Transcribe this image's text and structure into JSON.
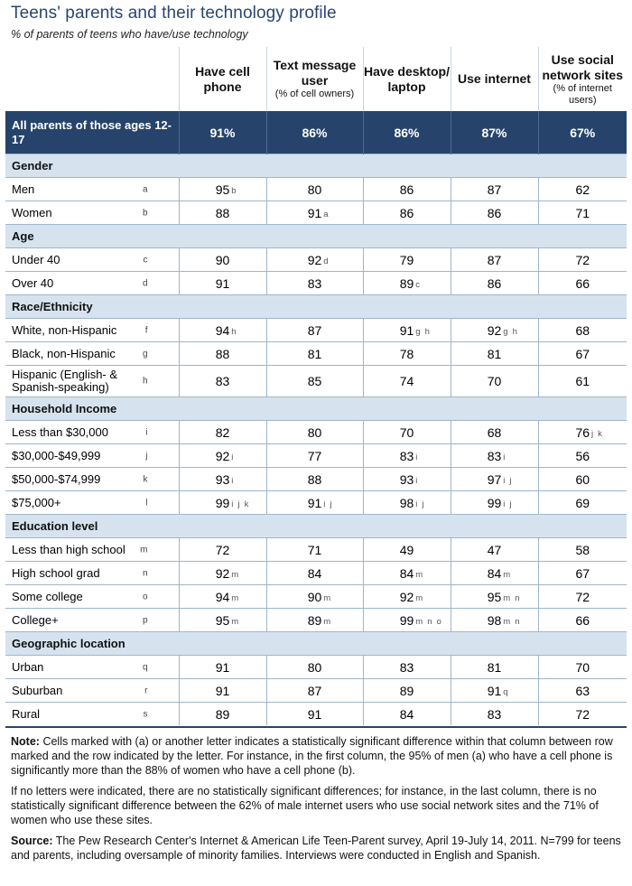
{
  "title": "Teens' parents and their technology profile",
  "subtitle": "% of parents of teens who have/use technology",
  "columns": [
    {
      "label": "Have cell phone",
      "sub": ""
    },
    {
      "label": "Text message user",
      "sub": "(% of cell owners)"
    },
    {
      "label": "Have desktop/ laptop",
      "sub": ""
    },
    {
      "label": "Use internet",
      "sub": ""
    },
    {
      "label": "Use social network sites",
      "sub": "(% of internet users)"
    }
  ],
  "all_parents": {
    "label": "All parents of those ages 12-17",
    "values": [
      "91%",
      "86%",
      "86%",
      "87%",
      "67%"
    ]
  },
  "sections": [
    {
      "title": "Gender",
      "rows": [
        {
          "label": "Men",
          "letter": "a",
          "cells": [
            {
              "v": "95",
              "s": "b"
            },
            {
              "v": "80",
              "s": ""
            },
            {
              "v": "86",
              "s": ""
            },
            {
              "v": "87",
              "s": ""
            },
            {
              "v": "62",
              "s": ""
            }
          ]
        },
        {
          "label": "Women",
          "letter": "b",
          "cells": [
            {
              "v": "88",
              "s": ""
            },
            {
              "v": "91",
              "s": "a"
            },
            {
              "v": "86",
              "s": ""
            },
            {
              "v": "86",
              "s": ""
            },
            {
              "v": "71",
              "s": ""
            }
          ]
        }
      ]
    },
    {
      "title": "Age",
      "rows": [
        {
          "label": "Under 40",
          "letter": "c",
          "cells": [
            {
              "v": "90",
              "s": ""
            },
            {
              "v": "92",
              "s": "d"
            },
            {
              "v": "79",
              "s": ""
            },
            {
              "v": "87",
              "s": ""
            },
            {
              "v": "72",
              "s": ""
            }
          ]
        },
        {
          "label": "Over 40",
          "letter": "d",
          "cells": [
            {
              "v": "91",
              "s": ""
            },
            {
              "v": "83",
              "s": ""
            },
            {
              "v": "89",
              "s": "c"
            },
            {
              "v": "86",
              "s": ""
            },
            {
              "v": "66",
              "s": ""
            }
          ]
        }
      ]
    },
    {
      "title": "Race/Ethnicity",
      "rows": [
        {
          "label": "White, non-Hispanic",
          "letter": "f",
          "cells": [
            {
              "v": "94",
              "s": "h"
            },
            {
              "v": "87",
              "s": ""
            },
            {
              "v": "91",
              "s": "g h"
            },
            {
              "v": "92",
              "s": "g h"
            },
            {
              "v": "68",
              "s": ""
            }
          ]
        },
        {
          "label": "Black, non-Hispanic",
          "letter": "g",
          "cells": [
            {
              "v": "88",
              "s": ""
            },
            {
              "v": "81",
              "s": ""
            },
            {
              "v": "78",
              "s": ""
            },
            {
              "v": "81",
              "s": ""
            },
            {
              "v": "67",
              "s": ""
            }
          ]
        },
        {
          "label": "Hispanic (English- & Spanish-speaking)",
          "letter": "h",
          "tall": true,
          "cells": [
            {
              "v": "83",
              "s": ""
            },
            {
              "v": "85",
              "s": ""
            },
            {
              "v": "74",
              "s": ""
            },
            {
              "v": "70",
              "s": ""
            },
            {
              "v": "61",
              "s": ""
            }
          ]
        }
      ]
    },
    {
      "title": "Household Income",
      "rows": [
        {
          "label": "Less than $30,000",
          "letter": "i",
          "cells": [
            {
              "v": "82",
              "s": ""
            },
            {
              "v": "80",
              "s": ""
            },
            {
              "v": "70",
              "s": ""
            },
            {
              "v": "68",
              "s": ""
            },
            {
              "v": "76",
              "s": "j k"
            }
          ]
        },
        {
          "label": "$30,000-$49,999",
          "letter": "j",
          "cells": [
            {
              "v": "92",
              "s": "i"
            },
            {
              "v": "77",
              "s": ""
            },
            {
              "v": "83",
              "s": "i"
            },
            {
              "v": "83",
              "s": "i"
            },
            {
              "v": "56",
              "s": ""
            }
          ]
        },
        {
          "label": "$50,000-$74,999",
          "letter": "k",
          "cells": [
            {
              "v": "93",
              "s": "i"
            },
            {
              "v": "88",
              "s": ""
            },
            {
              "v": "93",
              "s": "i"
            },
            {
              "v": "97",
              "s": "i j"
            },
            {
              "v": "60",
              "s": ""
            }
          ]
        },
        {
          "label": "$75,000+",
          "letter": "l",
          "cells": [
            {
              "v": "99",
              "s": "i j k"
            },
            {
              "v": "91",
              "s": "i j"
            },
            {
              "v": "98",
              "s": "i j"
            },
            {
              "v": "99",
              "s": "i j"
            },
            {
              "v": "69",
              "s": ""
            }
          ]
        }
      ]
    },
    {
      "title": "Education level",
      "rows": [
        {
          "label": "Less than high school",
          "letter": "m",
          "cells": [
            {
              "v": "72",
              "s": ""
            },
            {
              "v": "71",
              "s": ""
            },
            {
              "v": "49",
              "s": ""
            },
            {
              "v": "47",
              "s": ""
            },
            {
              "v": "58",
              "s": ""
            }
          ]
        },
        {
          "label": "High school grad",
          "letter": "n",
          "cells": [
            {
              "v": "92",
              "s": "m"
            },
            {
              "v": "84",
              "s": ""
            },
            {
              "v": "84",
              "s": "m"
            },
            {
              "v": "84",
              "s": "m"
            },
            {
              "v": "67",
              "s": ""
            }
          ]
        },
        {
          "label": "Some college",
          "letter": "o",
          "cells": [
            {
              "v": "94",
              "s": "m"
            },
            {
              "v": "90",
              "s": "m"
            },
            {
              "v": "92",
              "s": "m"
            },
            {
              "v": "95",
              "s": "m n"
            },
            {
              "v": "72",
              "s": ""
            }
          ]
        },
        {
          "label": "College+",
          "letter": "p",
          "cells": [
            {
              "v": "95",
              "s": "m"
            },
            {
              "v": "89",
              "s": "m"
            },
            {
              "v": "99",
              "s": "m n o"
            },
            {
              "v": "98",
              "s": "m n"
            },
            {
              "v": "66",
              "s": ""
            }
          ]
        }
      ]
    },
    {
      "title": "Geographic location",
      "rows": [
        {
          "label": "Urban",
          "letter": "q",
          "cells": [
            {
              "v": "91",
              "s": ""
            },
            {
              "v": "80",
              "s": ""
            },
            {
              "v": "83",
              "s": ""
            },
            {
              "v": "81",
              "s": ""
            },
            {
              "v": "70",
              "s": ""
            }
          ]
        },
        {
          "label": "Suburban",
          "letter": "r",
          "cells": [
            {
              "v": "91",
              "s": ""
            },
            {
              "v": "87",
              "s": ""
            },
            {
              "v": "89",
              "s": ""
            },
            {
              "v": "91",
              "s": "q"
            },
            {
              "v": "63",
              "s": ""
            }
          ]
        },
        {
          "label": "Rural",
          "letter": "s",
          "cells": [
            {
              "v": "89",
              "s": ""
            },
            {
              "v": "91",
              "s": ""
            },
            {
              "v": "84",
              "s": ""
            },
            {
              "v": "83",
              "s": ""
            },
            {
              "v": "72",
              "s": ""
            }
          ]
        }
      ]
    }
  ],
  "notes": {
    "note_label": "Note:",
    "note_text": "Cells marked with (a) or another letter indicates a statistically significant difference within that column between row marked and the row indicated by the letter. For instance, in the first column, the 95% of men (a) who have a cell phone is significantly more than the 88% of women who have a cell phone (b).",
    "note_text2": "If no letters were indicated, there are no statistically significant differences; for instance, in the last column, there is no statistically significant difference between the 62% of male internet users who use social network sites and the 71% of women who use these sites.",
    "source_label": "Source:",
    "source_text": "The Pew Research Center's Internet & American Life Teen-Parent survey, April 19-July 14, 2011. N=799 for teens and parents, including oversample of minority families. Interviews were conducted in English and Spanish."
  },
  "colors": {
    "header_bg": "#26446b",
    "section_bg": "#d6e3ef",
    "title": "#2a4670"
  }
}
